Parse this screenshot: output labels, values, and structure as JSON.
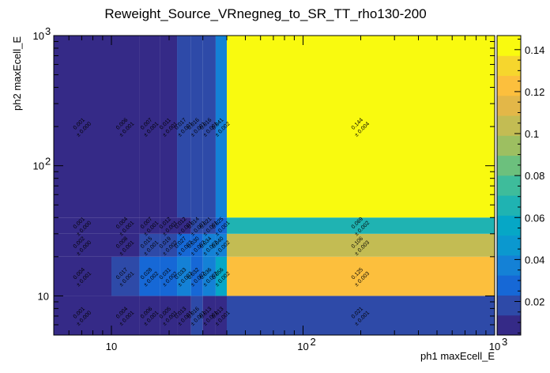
{
  "chart_data": {
    "type": "heatmap",
    "title": "Reweight_Source_VRnegneg_to_SR_TT_rho130-200",
    "xlabel": "ph1 maxEcell_E",
    "ylabel": "ph2 maxEcell_E",
    "xscale": "log",
    "yscale": "log",
    "xlim": [
      5,
      1000
    ],
    "ylim": [
      5,
      1000
    ],
    "x_ticks": [
      {
        "value": 10,
        "base": "10",
        "exp": ""
      },
      {
        "value": 100,
        "base": "10",
        "exp": "2"
      },
      {
        "value": 1000,
        "base": "10",
        "exp": "3"
      }
    ],
    "y_ticks": [
      {
        "value": 10,
        "base": "10",
        "exp": ""
      },
      {
        "value": 100,
        "base": "10",
        "exp": "2"
      },
      {
        "value": 1000,
        "base": "10",
        "exp": "3"
      }
    ],
    "x_edges": [
      5,
      10,
      14,
      18,
      22,
      26,
      30,
      35,
      40,
      1000
    ],
    "y_edges": [
      5,
      10,
      20,
      30,
      40,
      1000
    ],
    "values": [
      [
        0.001,
        0.004,
        0.006,
        0.005,
        0.013,
        0.016,
        0.013,
        0.013,
        0.021
      ],
      [
        0.004,
        0.017,
        0.028,
        0.031,
        0.033,
        0.032,
        0.036,
        0.056,
        0.125
      ],
      [
        0.002,
        0.008,
        0.015,
        0.019,
        0.027,
        0.03,
        0.034,
        0.04,
        0.106
      ],
      [
        0.001,
        0.004,
        0.007,
        0.012,
        0.012,
        0.014,
        0.021,
        0.025,
        0.069
      ],
      [
        0.001,
        0.006,
        0.007,
        0.011,
        0.017,
        0.016,
        0.016,
        0.041,
        0.144
      ]
    ],
    "errors": [
      [
        0.0,
        0.001,
        0.001,
        0.001,
        0.001,
        0.001,
        0.001,
        0.001,
        0.001
      ],
      [
        0.001,
        0.001,
        0.002,
        0.002,
        0.002,
        0.002,
        0.002,
        0.002,
        0.003
      ],
      [
        0.0,
        0.001,
        0.001,
        0.002,
        0.002,
        0.002,
        0.002,
        0.002,
        0.003
      ],
      [
        0.0,
        0.001,
        0.001,
        0.001,
        0.001,
        0.001,
        0.001,
        0.001,
        0.002
      ],
      [
        0.0,
        0.001,
        0.001,
        0.001,
        0.001,
        0.001,
        0.001,
        0.002,
        0.004
      ]
    ],
    "colorbar": {
      "min": 0.004,
      "max": 0.1467,
      "ticks": [
        "0.02",
        "0.04",
        "0.06",
        "0.08",
        "0.1",
        "0.12",
        "0.14"
      ],
      "tick_values": [
        0.02,
        0.04,
        0.06,
        0.08,
        0.1,
        0.12,
        0.14
      ]
    }
  }
}
